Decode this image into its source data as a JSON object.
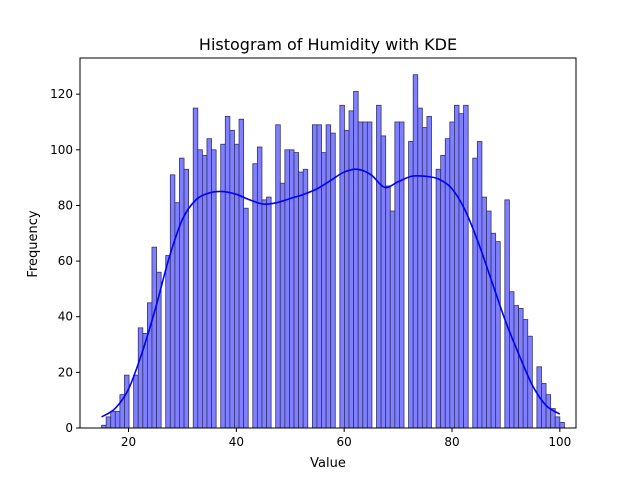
{
  "chart_data": {
    "type": "bar",
    "title": "Histogram of Humidity with KDE",
    "xlabel": "Value",
    "ylabel": "Frequency",
    "xlim": [
      11,
      103
    ],
    "ylim": [
      0,
      133
    ],
    "xticks": [
      20,
      40,
      60,
      80,
      100
    ],
    "yticks": [
      0,
      20,
      40,
      60,
      80,
      100,
      120
    ],
    "bar_color": "#7f7fff",
    "bar_edge_color": "#33336b",
    "kde_color": "#0000ff",
    "histogram": {
      "bin_width": 0.85,
      "bin_start": 15.0,
      "counts": [
        1,
        4,
        6,
        6,
        12,
        19,
        0,
        19,
        36,
        34,
        45,
        65,
        56,
        0,
        62,
        91,
        81,
        97,
        93,
        0,
        115,
        100,
        98,
        104,
        100,
        0,
        102,
        112,
        107,
        102,
        111,
        79,
        0,
        95,
        101,
        82,
        83,
        0,
        109,
        88,
        100,
        100,
        99,
        92,
        93,
        0,
        109,
        109,
        99,
        109,
        106,
        0,
        116,
        107,
        114,
        121,
        110,
        110,
        110,
        0,
        116,
        105,
        87,
        78,
        110,
        110,
        0,
        103,
        127,
        115,
        108,
        112,
        0,
        93,
        98,
        104,
        110,
        116,
        113,
        116,
        0,
        97,
        103,
        83,
        78,
        70,
        67,
        0,
        82,
        49,
        44,
        43,
        39,
        33,
        0,
        22,
        16,
        12,
        7,
        4,
        2
      ]
    },
    "kde": {
      "x": [
        15,
        17.5,
        20,
        22.5,
        25,
        27.5,
        30,
        32.5,
        35,
        37.5,
        40,
        42.5,
        45,
        47.5,
        50,
        52.5,
        55,
        57.5,
        60,
        62.5,
        65,
        67.5,
        70,
        72.5,
        75,
        77.5,
        80,
        82.5,
        85,
        87.5,
        90,
        92.5,
        95,
        97.5,
        100
      ],
      "y": [
        4,
        7,
        14,
        27,
        43,
        61,
        75,
        82,
        84.5,
        85,
        84,
        82,
        80.5,
        81,
        82.5,
        84,
        86,
        89,
        92,
        93,
        91,
        86.5,
        88.5,
        90.5,
        90.5,
        89.5,
        86,
        78,
        66,
        52,
        38,
        26,
        15,
        8,
        5
      ]
    }
  }
}
